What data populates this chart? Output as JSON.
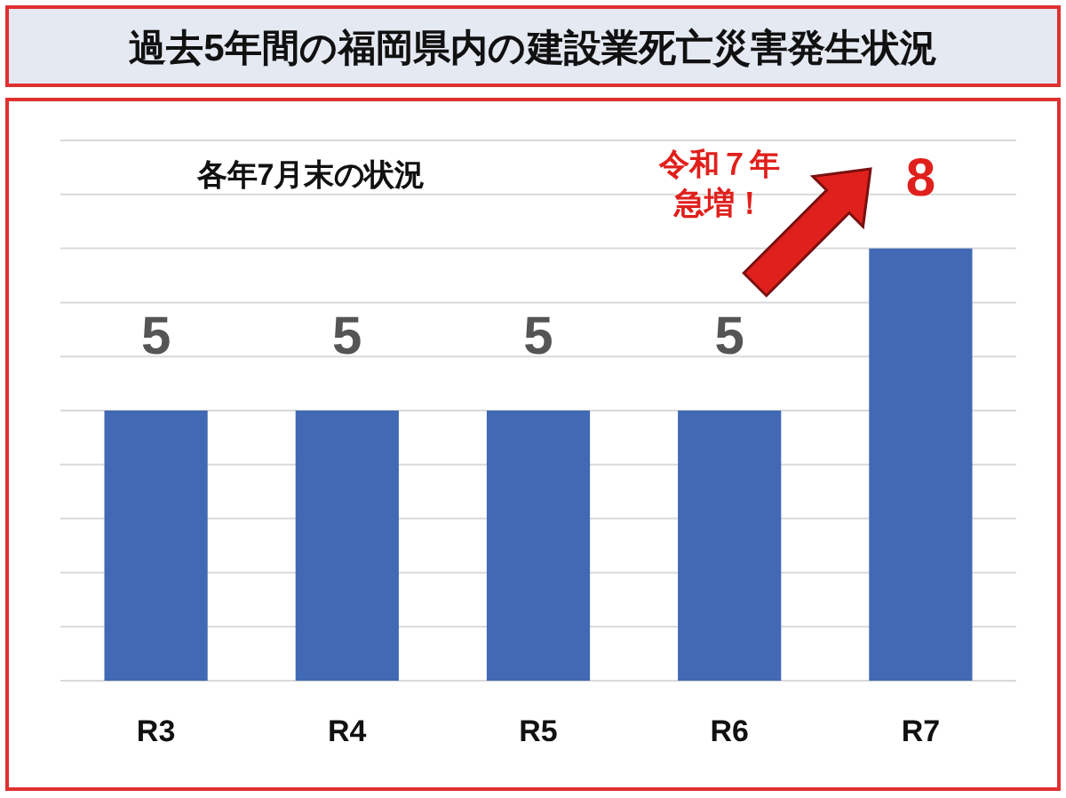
{
  "chart_data": {
    "type": "bar",
    "title": "過去5年間の福岡県内の建設業死亡災害発生状況",
    "subtitle": "各年7月末の状況",
    "categories": [
      "R3",
      "R4",
      "R5",
      "R6",
      "R7"
    ],
    "values": [
      5,
      5,
      5,
      5,
      8
    ],
    "color": "#4169b4",
    "value_labels": [
      "5",
      "5",
      "5",
      "5",
      null
    ],
    "annotations": [
      {
        "text": "8",
        "x": "R7",
        "y": 8
      },
      "令和７年",
      "急増！"
    ],
    "ylim": [
      0,
      10
    ],
    "yticks": [
      {
        "value": 0,
        "label": null
      },
      {
        "value": 1,
        "label": null
      },
      {
        "value": 2,
        "label": null
      },
      {
        "value": 3,
        "label": null
      },
      {
        "value": 4,
        "label": null
      },
      {
        "value": 5,
        "label": null
      },
      {
        "value": 6,
        "label": null
      },
      {
        "value": 7,
        "label": null
      },
      {
        "value": 8,
        "label": null
      },
      {
        "value": 9,
        "label": null
      },
      {
        "value": 10,
        "label": null
      }
    ],
    "grid": "y",
    "tick_labels": "x"
  }
}
